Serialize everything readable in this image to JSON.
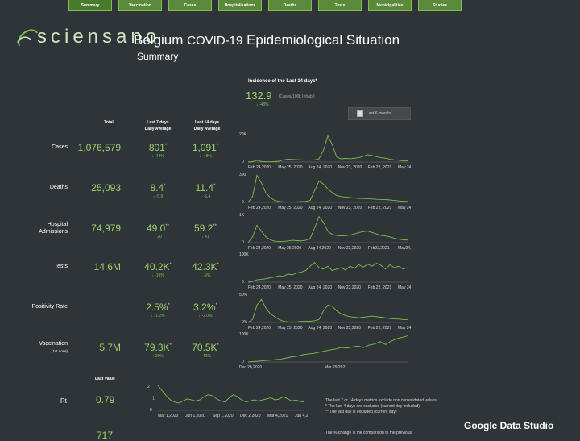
{
  "nav": [
    "Summary",
    "Vaccination",
    "Cases",
    "Hospitalisations",
    "Deaths",
    "Tests",
    "Municipalities",
    "Studies"
  ],
  "brand": {
    "logo_text": "sciensano",
    "accent": "#7fbf4a",
    "value_color": "#9ed36a"
  },
  "header": {
    "title_a": "Belgium",
    "title_b": "COVID-19",
    "title_c": "Epidemiological Situation",
    "subtitle": "Summary"
  },
  "incidence": {
    "title": "Incidence of the Last 14 days*",
    "value": "132.9",
    "unit": "[Cases/100k Inhab.]",
    "change": "↓ -48%"
  },
  "toggle_label": "Last 6 months",
  "columns": {
    "total": "Total",
    "last7": "Last 7 days",
    "last7_sub": "Daily Average",
    "last14": "Last 14 days",
    "last14_sub": "Daily Average"
  },
  "rows": [
    {
      "label": "Cases",
      "sublabel": "",
      "total": "1,076,579",
      "avg7": "801",
      "mark7": "*",
      "chg7": "↓ -42%",
      "avg14": "1,091",
      "mark14": "*",
      "chg14": "↓ -48%"
    },
    {
      "label": "Deaths",
      "sublabel": "",
      "total": "25,093",
      "avg7": "8.4",
      "mark7": "*",
      "chg7": "↓ -5.9",
      "avg14": "11.4",
      "mark14": "*",
      "chg14": "↓ -5.4"
    },
    {
      "label": "Hospital",
      "sublabel": "Admissions",
      "total": "74,979",
      "avg7": "49.0",
      "mark7": "**",
      "chg7": "↓ 20",
      "avg14": "59.2",
      "mark14": "**",
      "chg14": "↓ 41"
    },
    {
      "label": "Tests",
      "sublabel": "",
      "total": "14.6M",
      "avg7": "40.2K",
      "mark7": "*",
      "chg7": "↓ -10%",
      "avg14": "42.3K",
      "mark14": "*",
      "chg14": "↓ -9%"
    },
    {
      "label": "Positivity Rate",
      "sublabel": "",
      "total": "",
      "avg7": "2.5%",
      "mark7": "*",
      "chg7": "↓ -1.2%",
      "avg14": "3.2%",
      "mark14": "*",
      "chg14": "↓ -2.0%"
    },
    {
      "label": "Vaccination",
      "sublabel": "(1st dose)",
      "total": "5.7M",
      "avg7": "79.3K",
      "mark7": "*",
      "chg7": "↑ 29%",
      "avg14": "70.5K",
      "mark14": "*",
      "chg14": "↑ 43%"
    }
  ],
  "sparklines": [
    {
      "type": "line",
      "ytop": "20K",
      "ybottom": "0",
      "xticks": [
        "Feb 24,2020",
        "May 25, 2020",
        "Aug 24, 2020",
        "Nov 23, 2020",
        "Feb 22, 2021",
        "May 24, 2021"
      ],
      "values": [
        0,
        300,
        1200,
        400,
        200,
        150,
        300,
        600,
        1500,
        2000,
        1800,
        1600,
        1500,
        1400,
        1300,
        1500,
        2200,
        8000,
        18000,
        12000,
        3500,
        2200,
        2500,
        2300,
        2600,
        3000,
        4000,
        5000,
        4500,
        3600,
        3000,
        2600,
        2000,
        1500,
        1200,
        900,
        800
      ]
    },
    {
      "type": "line",
      "ytop": "300",
      "ybottom": "0",
      "xticks": [
        "Feb 24,2020",
        "May 25, 2020",
        "Aug 24, 2020",
        "Nov 23, 2020",
        "Feb 22, 2021",
        "May 24, 2021"
      ],
      "values": [
        0,
        60,
        280,
        200,
        100,
        50,
        20,
        10,
        6,
        5,
        5,
        6,
        8,
        10,
        20,
        120,
        220,
        190,
        140,
        100,
        70,
        60,
        55,
        50,
        45,
        42,
        40,
        38,
        35,
        32,
        30,
        28,
        25,
        20,
        15,
        12,
        10
      ]
    },
    {
      "type": "line",
      "ytop": "1K",
      "ybottom": "0",
      "xticks": [
        "Feb 24,2020",
        "May 25,2020",
        "Aug 24,2020",
        "Nov 23,2020",
        "Feb22,2021",
        "May24,2021"
      ],
      "values": [
        0,
        200,
        600,
        400,
        200,
        100,
        50,
        40,
        45,
        60,
        80,
        70,
        60,
        80,
        150,
        500,
        900,
        700,
        400,
        280,
        250,
        230,
        240,
        260,
        300,
        350,
        380,
        400,
        350,
        300,
        250,
        230,
        200,
        150,
        120,
        100,
        90
      ]
    },
    {
      "type": "line",
      "ytop": "100K",
      "ybottom": "0",
      "xticks": [
        "Feb 24,2020",
        "May 25, 2020",
        "Aug 24, 2020",
        "Nov 23,2020",
        "Feb 22, 2021",
        "May 24, 2021"
      ],
      "values": [
        0,
        3000,
        8000,
        10000,
        12000,
        15000,
        18000,
        22000,
        20000,
        28000,
        25000,
        32000,
        35000,
        40000,
        55000,
        68000,
        50000,
        45000,
        55000,
        40000,
        45000,
        50000,
        42000,
        55000,
        48000,
        60000,
        52000,
        62000,
        55000,
        65000,
        58000,
        45000,
        60000,
        50000,
        55000,
        45000,
        50000
      ]
    },
    {
      "type": "line",
      "ytop": "50%",
      "ybottom": "0%",
      "xticks": [
        "Feb 24,2020",
        "May 25, 2020",
        "Aug 24, 2020",
        "Nov 23,2020",
        "Feb 22, 2021",
        "May 24, 2021"
      ],
      "values": [
        0,
        5,
        30,
        40,
        25,
        15,
        10,
        5,
        2,
        1,
        1,
        1,
        2,
        2,
        2,
        3,
        5,
        20,
        30,
        28,
        20,
        15,
        12,
        10,
        9,
        8,
        9,
        10,
        11,
        10,
        9,
        8,
        7,
        6,
        6,
        5,
        5
      ]
    },
    {
      "type": "line",
      "ytop": "100K",
      "ybottom": "0",
      "xticks": [
        "Dec 28,2020",
        "Mar 29,2021"
      ],
      "values": [
        0,
        2000,
        3000,
        5000,
        6000,
        8000,
        10000,
        14000,
        18000,
        20000,
        25000,
        28000,
        30000,
        34000,
        38000,
        42000,
        45000,
        50000,
        48000,
        52000,
        55000,
        50000,
        58000,
        62000,
        70000,
        60000,
        72000,
        80000,
        85000,
        90000
      ]
    }
  ],
  "last_value_header": "Last Value",
  "rt": {
    "label": "Rt",
    "value": "0.79",
    "ytop": "2",
    "ymid": "1",
    "ybottom": "0",
    "xticks": [
      "Mar 1,2020",
      "Jun 1,2020",
      "Sep 1,2020",
      "Dec 2,2020",
      "Mar 4,2021",
      "Jun 4,2021"
    ],
    "values": [
      2.4,
      1.9,
      1.4,
      1.0,
      0.8,
      0.7,
      0.9,
      1.1,
      1.0,
      0.9,
      1.0,
      1.3,
      1.5,
      1.4,
      1.1,
      0.9,
      0.8,
      1.2,
      1.5,
      1.3,
      1.0,
      0.8,
      0.9,
      1.0,
      0.9,
      1.0,
      1.1,
      1.2,
      1.0,
      1.1,
      1.3,
      1.1,
      0.9,
      1.0,
      0.85,
      0.8
    ]
  },
  "next_row": {
    "value": "717",
    "ytop": "10K"
  },
  "notes": {
    "line1": "The last 7 or 14 days metrics exclude non consolidated values:",
    "line2": "* The last 4 days are excluded (current day included)",
    "line3": "** The last day is excluded (current day)",
    "line4": "The % change is the comparison to the previous"
  },
  "footer": {
    "brand": "Google Data Studio"
  }
}
